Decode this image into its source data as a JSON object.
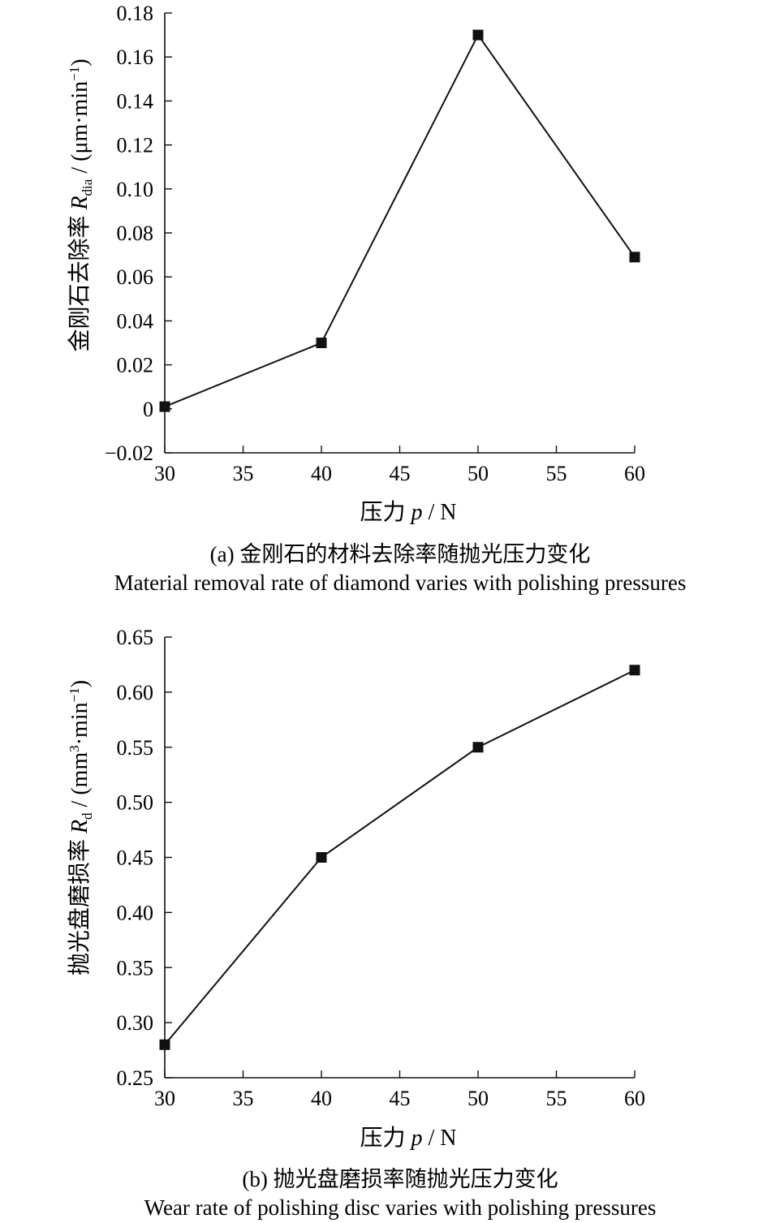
{
  "charts": [
    {
      "chart_data": {
        "type": "line",
        "x": [
          30,
          40,
          50,
          60
        ],
        "series": [
          {
            "values": [
              0.001,
              0.03,
              0.17,
              0.069
            ]
          }
        ],
        "xlim": [
          30,
          60
        ],
        "ylim": [
          -0.02,
          0.18
        ],
        "xticks": [
          "30",
          "35",
          "40",
          "45",
          "50",
          "55",
          "60"
        ],
        "yticks": [
          "−0.02",
          "0",
          "0.02",
          "0.04",
          "0.06",
          "0.08",
          "0.10",
          "0.12",
          "0.14",
          "0.16",
          "0.18"
        ],
        "xlabel": {
          "main": "压力 ",
          "var": "p",
          "unit": " / N"
        },
        "ylabel": {
          "main": "金刚石去除率 ",
          "var": "R",
          "sub": "dia",
          "unit": " / (μm·min",
          "sup": "−1",
          "close": ")"
        },
        "grid": false,
        "marker": "square"
      },
      "caption_cn": "(a) 金刚石的材料去除率随抛光压力变化",
      "caption_en": "Material removal rate of diamond varies with polishing pressures"
    },
    {
      "chart_data": {
        "type": "line",
        "x": [
          30,
          40,
          50,
          60
        ],
        "series": [
          {
            "values": [
              0.28,
              0.45,
              0.55,
              0.62
            ]
          }
        ],
        "xlim": [
          30,
          60
        ],
        "ylim": [
          0.25,
          0.65
        ],
        "xticks": [
          "30",
          "35",
          "40",
          "45",
          "50",
          "55",
          "60"
        ],
        "yticks": [
          "0.25",
          "0.30",
          "0.35",
          "0.40",
          "0.45",
          "0.50",
          "0.55",
          "0.60",
          "0.65"
        ],
        "xlabel": {
          "main": "压力 ",
          "var": "p",
          "unit": " / N"
        },
        "ylabel": {
          "main": "抛光盘磨损率 ",
          "var": "R",
          "sub": "d",
          "unit": " / (mm",
          "sup": "3",
          "unit2": "·min",
          "sup2": "−1",
          "close": ")"
        },
        "grid": false,
        "marker": "square"
      },
      "caption_cn": "(b) 抛光盘磨损率随抛光压力变化",
      "caption_en": "Wear rate of polishing disc varies with polishing pressures"
    }
  ]
}
